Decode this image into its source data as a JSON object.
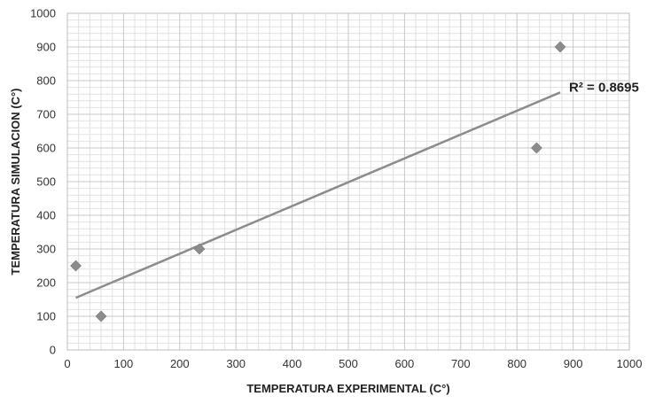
{
  "chart_data": {
    "type": "scatter",
    "xlabel": "TEMPERATURA EXPERIMENTAL (C°)",
    "ylabel": "TEMPERATURA SIMULACION (C°)",
    "xlim": [
      0,
      1000
    ],
    "ylim": [
      0,
      1000
    ],
    "xticks": [
      0,
      100,
      200,
      300,
      400,
      500,
      600,
      700,
      800,
      900,
      1000
    ],
    "yticks": [
      0,
      100,
      200,
      300,
      400,
      500,
      600,
      700,
      800,
      900,
      1000
    ],
    "grid": true,
    "marker": "diamond",
    "colors": {
      "marker": "#8c8c8c",
      "trendline": "#8c8c8c",
      "grid_major": "#c8c8c8",
      "grid_minor": "#e2e2e2"
    },
    "series": [
      {
        "points": [
          {
            "x": 15,
            "y": 250
          },
          {
            "x": 60,
            "y": 100
          },
          {
            "x": 235,
            "y": 300
          },
          {
            "x": 835,
            "y": 600
          },
          {
            "x": 877,
            "y": 900
          }
        ]
      }
    ],
    "trendline": {
      "type": "linear",
      "x_range": [
        15,
        877
      ],
      "y_range": [
        155,
        765
      ],
      "label": "R² = 0.8695"
    }
  }
}
